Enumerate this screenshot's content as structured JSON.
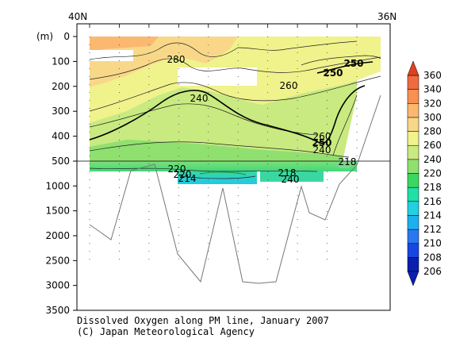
{
  "chart_data": {
    "type": "heatmap",
    "title": "Dissolved Oxygen along PM line, January 2007",
    "credit": "(C) Japan Meteorological Agency",
    "x_start_label": "40N",
    "x_end_label": "36N",
    "y_unit_label": "(m)",
    "y_axis_segments": [
      {
        "ticks": [
          0,
          100,
          200,
          300,
          400,
          500
        ],
        "range": [
          0,
          500
        ]
      },
      {
        "ticks": [
          500,
          1000,
          1500,
          2000,
          2500,
          3000,
          3500
        ],
        "range": [
          500,
          3500
        ]
      }
    ],
    "colorbar": {
      "levels": [
        206,
        208,
        210,
        212,
        214,
        216,
        218,
        220,
        240,
        260,
        280,
        300,
        320,
        340,
        360
      ],
      "colors": [
        "#0a1fb0",
        "#1846e0",
        "#2a78f0",
        "#1cb0f0",
        "#22d0e0",
        "#20e0a8",
        "#3ad860",
        "#90e070",
        "#c8ea80",
        "#f0f28c",
        "#f8d888",
        "#fbb870",
        "#f79050",
        "#f06a40",
        "#e04020"
      ]
    },
    "contour_labels": [
      "280",
      "250",
      "250",
      "240",
      "260",
      "260",
      "250",
      "240",
      "220",
      "218",
      "220",
      "214",
      "240",
      "218"
    ],
    "station_columns": 10
  }
}
